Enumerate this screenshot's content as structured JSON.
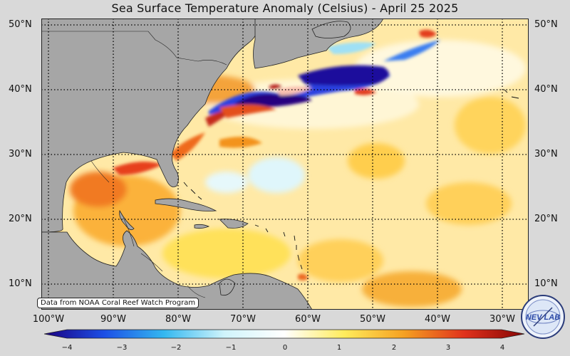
{
  "title": "Sea Surface Temperature Anomaly (Celsius) - April 25 2025",
  "credit": "Data from NOAA Coral Reef Watch Program",
  "latitude_labels": [
    "50°N",
    "40°N",
    "30°N",
    "20°N",
    "10°N"
  ],
  "longitude_labels": [
    "100°W",
    "90°W",
    "80°W",
    "70°W",
    "60°W",
    "50°W",
    "40°W",
    "30°W"
  ],
  "colorbar": {
    "ticks": [
      "−4",
      "−3",
      "−2",
      "−1",
      "0",
      "1",
      "2",
      "3",
      "4"
    ],
    "colors": [
      "#1a0080",
      "#1c4fe6",
      "#34b8f0",
      "#cff4fb",
      "#ffffff",
      "#ffec5c",
      "#f5a021",
      "#e0321c",
      "#850505"
    ]
  },
  "logo_text": "NEV LAB",
  "colors": {
    "land": "#a6a6a6",
    "ocean_warm": "#ffe9a6",
    "background": "#d9d9d9"
  }
}
